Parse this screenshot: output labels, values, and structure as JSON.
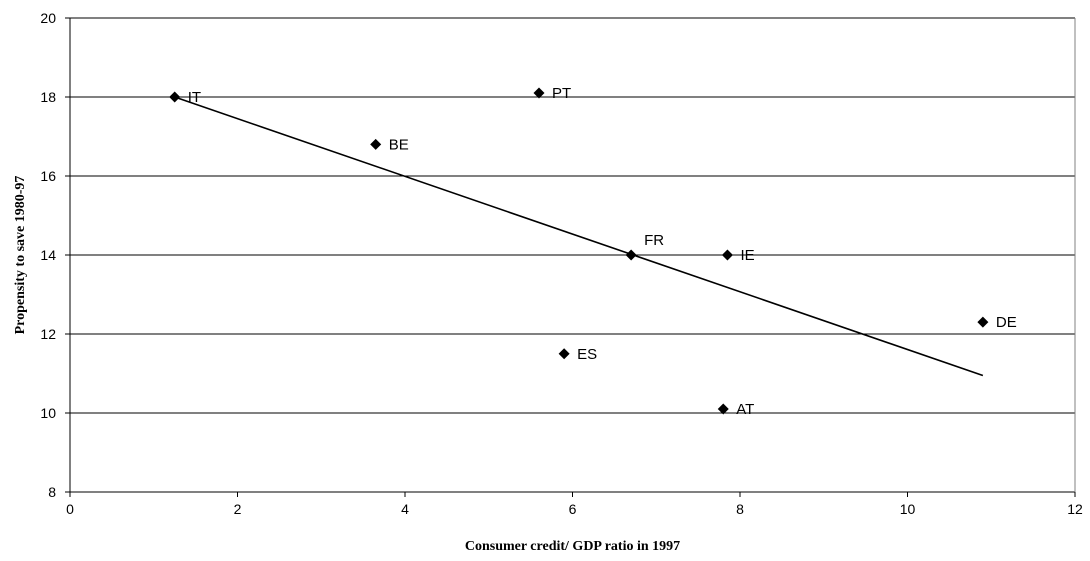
{
  "chart_data": {
    "type": "scatter",
    "title": "",
    "xlabel": "Consumer credit/ GDP ratio in 1997",
    "ylabel": "Propensity to save 1980-97",
    "xlim": [
      0,
      12
    ],
    "ylim": [
      8,
      20
    ],
    "xticks": [
      0,
      2,
      4,
      6,
      8,
      10,
      12
    ],
    "yticks": [
      8,
      10,
      12,
      14,
      16,
      18,
      20
    ],
    "grid": "horizontal",
    "legend": "none",
    "marker": "diamond",
    "colors": {
      "marker": "#000000",
      "trendline": "#000000",
      "grid": "#000000"
    },
    "points": [
      {
        "label": "IT",
        "x": 1.25,
        "y": 18.0
      },
      {
        "label": "BE",
        "x": 3.65,
        "y": 16.8
      },
      {
        "label": "PT",
        "x": 5.6,
        "y": 18.1
      },
      {
        "label": "FR",
        "x": 6.7,
        "y": 14.0
      },
      {
        "label": "IE",
        "x": 7.85,
        "y": 14.0
      },
      {
        "label": "ES",
        "x": 5.9,
        "y": 11.5
      },
      {
        "label": "AT",
        "x": 7.8,
        "y": 10.1
      },
      {
        "label": "DE",
        "x": 10.9,
        "y": 12.3
      }
    ],
    "trendline": {
      "x": [
        1.25,
        10.9
      ],
      "y": [
        18.0,
        10.95
      ]
    }
  }
}
